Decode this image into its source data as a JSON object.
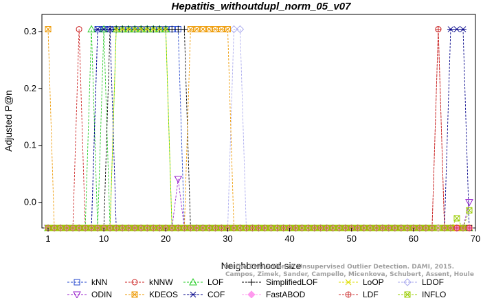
{
  "chart_data": {
    "type": "line",
    "title": "Hepatitis_withoutdupl_norm_05_v07",
    "xlabel": "Neighborhood size",
    "ylabel": "Adjusted P@n",
    "xlim": [
      0,
      70
    ],
    "ylim": [
      -0.045,
      0.33
    ],
    "x_ticks": [
      1,
      10,
      20,
      30,
      40,
      50,
      60,
      70
    ],
    "y_ticks": [
      0.0,
      0.1,
      0.2,
      0.3
    ],
    "y_tick_labels": [
      "0.0",
      "0.1",
      "0.2",
      "0.3"
    ],
    "baseline": -0.045,
    "grid": false,
    "legend_position": "bottom",
    "series": [
      {
        "name": "kNN",
        "color": "#2244cc",
        "marker": "square",
        "values": [
          [
            9,
            0.304
          ],
          [
            10,
            0.304
          ],
          [
            11,
            0.304
          ],
          [
            12,
            0.304
          ],
          [
            13,
            0.304
          ],
          [
            14,
            0.304
          ],
          [
            15,
            0.304
          ],
          [
            16,
            0.304
          ],
          [
            17,
            0.304
          ],
          [
            18,
            0.304
          ],
          [
            19,
            0.304
          ],
          [
            20,
            0.304
          ],
          [
            21,
            0.304
          ],
          [
            22,
            0.304
          ]
        ]
      },
      {
        "name": "kNNW",
        "color": "#cc2222",
        "marker": "circle",
        "values": [
          [
            6,
            0.304
          ],
          [
            64,
            0.304
          ]
        ]
      },
      {
        "name": "LOF",
        "color": "#22cc22",
        "marker": "triangle-up",
        "values": [
          [
            8,
            0.304
          ],
          [
            10,
            0.304
          ],
          [
            12,
            0.304
          ],
          [
            13,
            0.304
          ],
          [
            14,
            0.304
          ],
          [
            15,
            0.304
          ],
          [
            16,
            0.304
          ],
          [
            17,
            0.304
          ],
          [
            18,
            0.304
          ],
          [
            19,
            0.304
          ],
          [
            20,
            0.304
          ]
        ]
      },
      {
        "name": "SimplifiedLOF",
        "color": "#000000",
        "marker": "plus",
        "values": [
          [
            11,
            0.304
          ],
          [
            12,
            0.304
          ],
          [
            13,
            0.304
          ],
          [
            14,
            0.304
          ],
          [
            15,
            0.304
          ],
          [
            16,
            0.304
          ],
          [
            17,
            0.304
          ],
          [
            18,
            0.304
          ],
          [
            19,
            0.304
          ],
          [
            20,
            0.304
          ],
          [
            21,
            0.304
          ],
          [
            22,
            0.304
          ],
          [
            23,
            0.304
          ]
        ]
      },
      {
        "name": "LoOP",
        "color": "#dddd00",
        "marker": "x",
        "values": [
          [
            12,
            0.304
          ],
          [
            13,
            0.304
          ],
          [
            14,
            0.304
          ],
          [
            15,
            0.304
          ],
          [
            16,
            0.304
          ],
          [
            17,
            0.304
          ],
          [
            18,
            0.304
          ],
          [
            19,
            0.304
          ],
          [
            20,
            0.304
          ]
        ]
      },
      {
        "name": "LDOF",
        "color": "#aaaaee",
        "marker": "diamond",
        "values": [
          [
            31,
            0.304
          ],
          [
            32,
            0.304
          ]
        ]
      },
      {
        "name": "ODIN",
        "color": "#9922cc",
        "marker": "triangle-down",
        "values": [
          [
            22,
            0.041
          ],
          [
            69,
            0.0
          ]
        ]
      },
      {
        "name": "KDEOS",
        "color": "#ee9900",
        "marker": "square-x",
        "values": [
          [
            1,
            0.304
          ],
          [
            24,
            0.304
          ],
          [
            25,
            0.304
          ],
          [
            26,
            0.304
          ],
          [
            27,
            0.304
          ],
          [
            28,
            0.304
          ],
          [
            29,
            0.304
          ],
          [
            30,
            0.304
          ]
        ]
      },
      {
        "name": "COF",
        "color": "#000088",
        "marker": "asterisk",
        "values": [
          [
            9,
            0.304
          ],
          [
            10,
            0.304
          ],
          [
            11,
            0.304
          ],
          [
            66,
            0.304
          ],
          [
            67,
            0.304
          ],
          [
            68,
            0.304
          ]
        ]
      },
      {
        "name": "FastABOD",
        "color": "#ff99ee",
        "marker": "diamond-filled",
        "values": []
      },
      {
        "name": "LDF",
        "color": "#cc3333",
        "marker": "circle-plus",
        "values": [
          [
            64,
            0.304
          ]
        ]
      },
      {
        "name": "INFLO",
        "color": "#99cc00",
        "marker": "square-x",
        "values": [
          [
            67,
            -0.028
          ],
          [
            69,
            -0.014
          ]
        ]
      }
    ]
  },
  "watermark": {
    "line1": "Campos, Zimek, Sander, Campello, Micenkova, Schubert, Assent, Houle",
    "line2": "On the Evaluation of Unsupervised Outlier Detection. DAMI, 2015."
  }
}
